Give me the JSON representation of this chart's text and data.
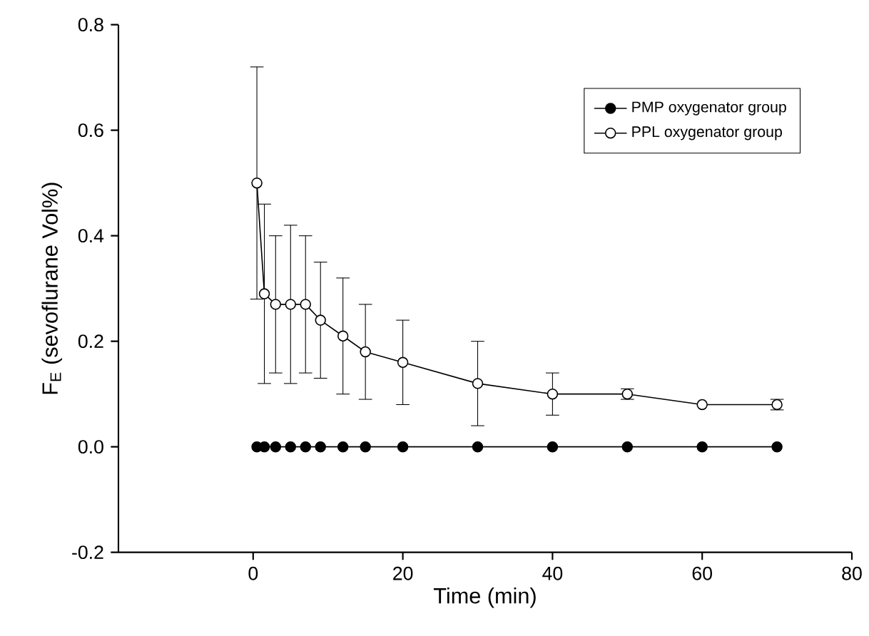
{
  "chart_data": {
    "type": "line",
    "xlabel": "Time (min)",
    "ylabel": "F$_{E}$ (sevoflurane Vol%)",
    "x": [
      0.5,
      1.5,
      3,
      5,
      7,
      9,
      12,
      15,
      20,
      30,
      40,
      50,
      60,
      70
    ],
    "series": [
      {
        "name": "PMP oxygenator group",
        "color": "#000000",
        "values": [
          0,
          0,
          0,
          0,
          0,
          0,
          0,
          0,
          0,
          0,
          0,
          0,
          0,
          0
        ]
      },
      {
        "name": "PPL oxygenator group",
        "color": "#ffffff",
        "values": [
          0.5,
          0.29,
          0.27,
          0.27,
          0.27,
          0.24,
          0.21,
          0.18,
          0.16,
          0.12,
          0.1,
          0.1,
          0.08,
          0.08
        ],
        "errors": [
          0.22,
          0.17,
          0.13,
          0.15,
          0.13,
          0.11,
          0.11,
          0.09,
          0.08,
          0.08,
          0.04,
          0.01,
          null,
          0.01
        ]
      }
    ],
    "xlim": [
      -18,
      80
    ],
    "ylim": [
      -0.2,
      0.8
    ],
    "xticks": [
      0,
      20,
      40,
      60,
      80
    ],
    "yticks": [
      -0.2,
      {
        "value": 0,
        "label": "0.0"
      },
      0.2,
      0.4,
      0.6,
      0.8
    ],
    "legend": "top right",
    "marker": "circle",
    "grid": false
  }
}
